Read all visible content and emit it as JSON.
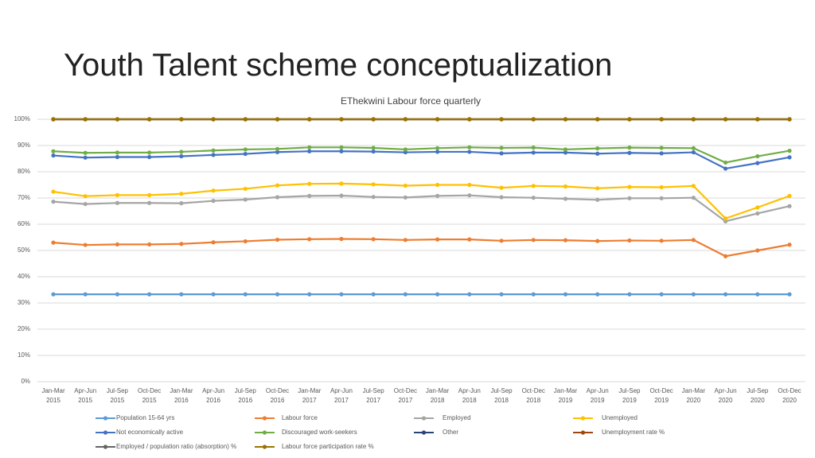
{
  "title": "Youth Talent scheme conceptualization",
  "chart_data": {
    "type": "line",
    "title": "EThekwini Labour force quarterly",
    "categories": [
      "Jan-Mar 2015",
      "Apr-Jun 2015",
      "Jul-Sep 2015",
      "Oct-Dec 2015",
      "Jan-Mar 2016",
      "Apr-Jun 2016",
      "Jul-Sep 2016",
      "Oct-Dec 2016",
      "Jan-Mar 2017",
      "Apr-Jun 2017",
      "Jul-Sep 2017",
      "Oct-Dec 2017",
      "Jan-Mar 2018",
      "Apr-Jun 2018",
      "Jul-Sep 2018",
      "Oct-Dec 2018",
      "Jan-Mar 2019",
      "Apr-Jun 2019",
      "Jul-Sep 2019",
      "Oct-Dec 2019",
      "Jan-Mar 2020",
      "Apr-Jun 2020",
      "Jul-Sep 2020",
      "Oct-Dec 2020"
    ],
    "ylim": [
      0,
      100
    ],
    "yticks": [
      {
        "value": 0,
        "label": "0%"
      },
      {
        "value": 10,
        "label": "10%"
      },
      {
        "value": 20,
        "label": "20%"
      },
      {
        "value": 30,
        "label": "30%"
      },
      {
        "value": 40,
        "label": "40%"
      },
      {
        "value": 50,
        "label": "50%"
      },
      {
        "value": 60,
        "label": "60%"
      },
      {
        "value": 70,
        "label": "70%"
      },
      {
        "value": 80,
        "label": "80%"
      },
      {
        "value": 90,
        "label": "90%"
      },
      {
        "value": 100,
        "label": "100%"
      }
    ],
    "grid": true,
    "legend": "bottom",
    "series": [
      {
        "name": "Population 15-64 yrs",
        "color": "#5b9bd5",
        "values": [
          33.3,
          33.3,
          33.3,
          33.3,
          33.3,
          33.3,
          33.3,
          33.3,
          33.3,
          33.3,
          33.3,
          33.3,
          33.3,
          33.3,
          33.3,
          33.3,
          33.3,
          33.3,
          33.3,
          33.3,
          33.3,
          33.3,
          33.3,
          33.3
        ]
      },
      {
        "name": "Labour force",
        "color": "#ed7d31",
        "values": [
          53.0,
          52.1,
          52.3,
          52.3,
          52.5,
          53.1,
          53.5,
          54.1,
          54.3,
          54.4,
          54.3,
          54.0,
          54.2,
          54.2,
          53.7,
          54.0,
          53.9,
          53.6,
          53.8,
          53.7,
          54.0,
          47.8,
          50.0,
          52.2
        ]
      },
      {
        "name": "Employed",
        "color": "#a5a5a5",
        "values": [
          68.6,
          67.7,
          68.1,
          68.1,
          68.0,
          68.9,
          69.4,
          70.3,
          70.8,
          70.9,
          70.4,
          70.2,
          70.8,
          71.0,
          70.3,
          70.1,
          69.7,
          69.3,
          69.9,
          69.9,
          70.1,
          61.1,
          64.1,
          66.9
        ]
      },
      {
        "name": "Unemployed",
        "color": "#ffc000",
        "values": [
          72.4,
          70.7,
          71.1,
          71.1,
          71.6,
          72.8,
          73.5,
          74.8,
          75.4,
          75.5,
          75.2,
          74.7,
          75.0,
          75.0,
          73.9,
          74.6,
          74.4,
          73.7,
          74.2,
          74.1,
          74.6,
          62.2,
          66.4,
          70.8
        ]
      },
      {
        "name": "Not economically active",
        "color": "#4472c4",
        "values": [
          86.2,
          85.4,
          85.6,
          85.6,
          85.9,
          86.4,
          86.8,
          87.5,
          87.8,
          87.8,
          87.7,
          87.4,
          87.6,
          87.6,
          87.0,
          87.3,
          87.3,
          86.9,
          87.2,
          87.0,
          87.4,
          81.2,
          83.3,
          85.5
        ]
      },
      {
        "name": "Discouraged work-seekers",
        "color": "#70ad47",
        "values": [
          87.8,
          87.2,
          87.3,
          87.3,
          87.6,
          88.1,
          88.5,
          88.7,
          89.3,
          89.3,
          89.1,
          88.5,
          89.0,
          89.3,
          89.1,
          89.2,
          88.5,
          88.9,
          89.2,
          89.1,
          89.0,
          83.5,
          85.9,
          88.0
        ]
      },
      {
        "name": "Other",
        "color": "#264478",
        "values": [
          100,
          100,
          100,
          100,
          100,
          100,
          100,
          100,
          100,
          100,
          100,
          100,
          100,
          100,
          100,
          100,
          100,
          100,
          100,
          100,
          100,
          100,
          100,
          100
        ]
      },
      {
        "name": "Unemployment rate %",
        "color": "#9e480e",
        "values": [
          100,
          100,
          100,
          100,
          100,
          100,
          100,
          100,
          100,
          100,
          100,
          100,
          100,
          100,
          100,
          100,
          100,
          100,
          100,
          100,
          100,
          100,
          100,
          100
        ]
      },
      {
        "name": "Employed / population ratio (absorption) %",
        "color": "#636363",
        "values": [
          100,
          100,
          100,
          100,
          100,
          100,
          100,
          100,
          100,
          100,
          100,
          100,
          100,
          100,
          100,
          100,
          100,
          100,
          100,
          100,
          100,
          100,
          100,
          100
        ]
      },
      {
        "name": "Labour force participation rate %",
        "color": "#997300",
        "values": [
          100,
          100,
          100,
          100,
          100,
          100,
          100,
          100,
          100,
          100,
          100,
          100,
          100,
          100,
          100,
          100,
          100,
          100,
          100,
          100,
          100,
          100,
          100,
          100
        ]
      }
    ]
  }
}
